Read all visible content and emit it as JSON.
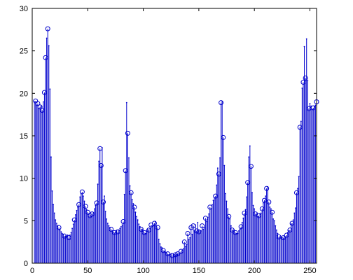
{
  "chart_data": {
    "type": "stem",
    "title": "",
    "xlabel": "",
    "ylabel": "",
    "xlim": [
      0,
      256
    ],
    "ylim": [
      0,
      30
    ],
    "xticks": [
      0,
      50,
      100,
      150,
      200,
      250
    ],
    "yticks": [
      0,
      5,
      10,
      15,
      20,
      25,
      30
    ],
    "grid": false,
    "legend": "none",
    "colors": {
      "stem": "#0000cc",
      "axis": "#000000",
      "background": "#ffffff"
    },
    "series": [
      {
        "marker": "circle",
        "x": [
          3,
          5,
          7,
          9,
          11,
          12,
          14,
          24,
          29,
          33,
          38,
          42,
          45,
          48,
          50,
          52,
          54,
          58,
          61,
          62,
          64,
          71,
          74,
          77,
          82,
          84,
          86,
          89,
          92,
          98,
          101,
          105,
          107,
          110,
          113,
          118,
          122,
          126,
          129,
          131,
          134,
          137,
          140,
          143,
          145,
          148,
          150,
          153,
          156,
          160,
          165,
          168,
          170,
          172,
          177,
          180,
          183,
          188,
          191,
          194,
          197,
          201,
          204,
          207,
          209,
          211,
          213,
          216,
          222,
          226,
          229,
          232,
          234,
          238,
          241,
          244,
          246,
          249,
          253,
          256
        ],
        "y": [
          19.1,
          18.8,
          18.4,
          18.0,
          20.1,
          24.2,
          27.6,
          4.2,
          3.2,
          3.0,
          5.1,
          6.9,
          8.4,
          6.7,
          6.0,
          5.6,
          5.8,
          7.1,
          13.5,
          11.5,
          7.2,
          4.0,
          3.6,
          3.7,
          4.9,
          10.9,
          15.3,
          8.3,
          6.6,
          4.0,
          3.6,
          3.9,
          4.5,
          4.7,
          4.2,
          1.5,
          1.1,
          0.9,
          1.0,
          1.1,
          1.4,
          2.5,
          3.5,
          4.2,
          4.4,
          3.8,
          3.7,
          4.4,
          5.3,
          6.6,
          7.9,
          10.5,
          18.9,
          14.8,
          5.5,
          3.9,
          3.6,
          4.3,
          5.9,
          9.5,
          11.4,
          5.8,
          5.6,
          6.4,
          7.4,
          8.8,
          7.2,
          6.0,
          3.1,
          3.0,
          3.3,
          3.9,
          4.7,
          8.3,
          16.0,
          21.3,
          21.8,
          18.2,
          18.3,
          19.0
        ]
      },
      {
        "marker": "dot",
        "x": [
          2,
          4,
          6,
          8,
          10,
          13,
          15,
          16,
          17,
          18,
          19,
          20,
          21,
          22,
          23,
          25,
          26,
          27,
          28,
          30,
          31,
          32,
          34,
          35,
          36,
          37,
          39,
          40,
          41,
          43,
          44,
          46,
          47,
          49,
          51,
          53,
          55,
          56,
          57,
          59,
          60,
          63,
          65,
          66,
          67,
          68,
          69,
          70,
          72,
          73,
          75,
          76,
          78,
          79,
          80,
          81,
          83,
          85,
          87,
          88,
          90,
          91,
          93,
          94,
          95,
          96,
          97,
          99,
          100,
          102,
          103,
          104,
          106,
          108,
          109,
          111,
          112,
          114,
          115,
          116,
          117,
          119,
          120,
          121,
          123,
          124,
          125,
          127,
          128,
          130,
          132,
          133,
          135,
          136,
          138,
          139,
          141,
          142,
          144,
          146,
          147,
          149,
          151,
          152,
          154,
          155,
          157,
          158,
          159,
          161,
          162,
          163,
          164,
          166,
          167,
          169,
          171,
          173,
          174,
          175,
          176,
          178,
          179,
          181,
          182,
          184,
          185,
          186,
          187,
          189,
          190,
          192,
          193,
          195,
          196,
          198,
          199,
          200,
          202,
          203,
          205,
          206,
          208,
          210,
          212,
          214,
          215,
          217,
          218,
          219,
          220,
          221,
          223,
          224,
          225,
          227,
          228,
          230,
          231,
          233,
          235,
          236,
          237,
          239,
          240,
          242,
          243,
          245,
          247,
          248,
          250,
          251,
          252,
          254,
          255
        ],
        "y": [
          19.0,
          18.6,
          18.2,
          18.5,
          19.0,
          26.5,
          25.6,
          20.5,
          12.5,
          8.5,
          6.9,
          5.9,
          5.1,
          4.7,
          4.4,
          3.9,
          3.7,
          3.5,
          3.4,
          3.2,
          3.2,
          3.3,
          3.3,
          3.6,
          4.1,
          4.6,
          5.7,
          6.2,
          6.6,
          7.8,
          8.2,
          7.9,
          7.3,
          6.3,
          5.8,
          5.5,
          5.9,
          6.4,
          6.8,
          9.3,
          12.0,
          13.6,
          7.9,
          6.1,
          5.2,
          4.7,
          4.4,
          4.2,
          3.8,
          3.6,
          3.6,
          3.8,
          3.9,
          4.1,
          4.3,
          4.5,
          8.1,
          18.9,
          12.4,
          9.1,
          7.5,
          7.0,
          6.0,
          5.5,
          5.1,
          4.6,
          4.3,
          4.0,
          3.7,
          3.5,
          3.8,
          4.0,
          4.1,
          4.4,
          4.4,
          4.9,
          4.4,
          2.8,
          2.3,
          1.9,
          1.8,
          1.4,
          1.3,
          1.2,
          1.0,
          1.0,
          1.1,
          1.0,
          1.0,
          1.0,
          1.1,
          1.2,
          1.5,
          1.7,
          2.0,
          2.2,
          2.8,
          3.0,
          3.4,
          3.8,
          4.5,
          4.8,
          3.8,
          3.8,
          4.0,
          4.2,
          4.9,
          5.4,
          5.8,
          6.4,
          6.9,
          7.4,
          7.7,
          9.2,
          11.2,
          12.4,
          19.0,
          11.5,
          8.2,
          7.3,
          6.4,
          5.2,
          4.4,
          3.9,
          3.7,
          3.5,
          3.5,
          3.8,
          4.0,
          4.8,
          5.3,
          6.3,
          7.8,
          12.5,
          13.8,
          8.3,
          6.8,
          6.4,
          5.8,
          5.5,
          5.8,
          5.9,
          7.1,
          7.9,
          9.0,
          6.6,
          6.4,
          5.2,
          5.0,
          4.4,
          3.9,
          3.5,
          3.1,
          3.0,
          3.0,
          3.2,
          3.1,
          3.6,
          3.8,
          4.6,
          5.1,
          5.9,
          6.5,
          8.8,
          10.2,
          16.7,
          20.6,
          25.5,
          26.4,
          21.5,
          18.8,
          18.5,
          18.1,
          18.4,
          18.6
        ]
      }
    ]
  }
}
